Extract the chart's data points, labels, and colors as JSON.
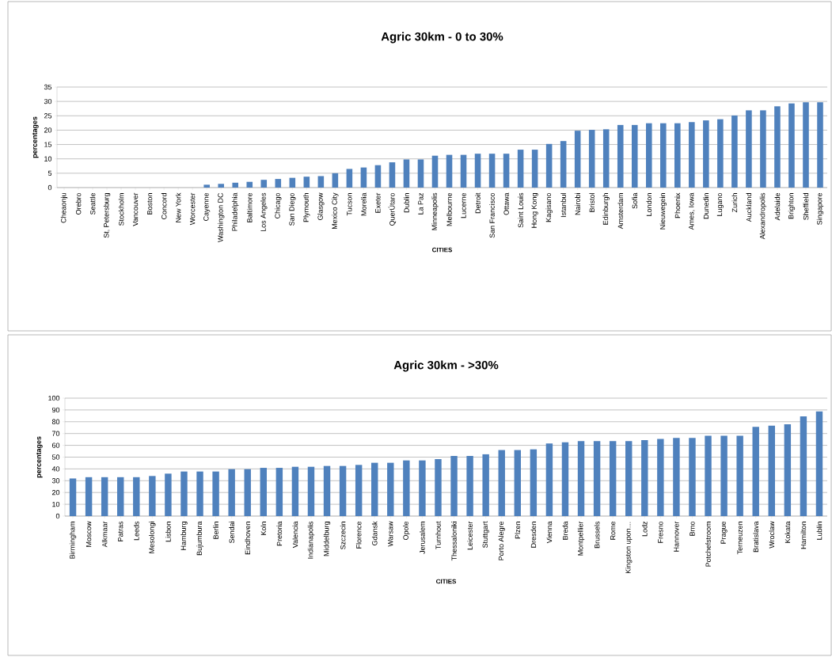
{
  "chart_data": [
    {
      "type": "bar",
      "title": "Agric 30km - 0 to 30%",
      "xlabel": "CITIES",
      "ylabel": "percentages",
      "color": "#4f81bd",
      "grid": "y",
      "ylim": [
        0,
        35
      ],
      "yticks": [
        0,
        5,
        10,
        15,
        20,
        25,
        30,
        35
      ],
      "categories": [
        "Cheaonju",
        "Orebro",
        "Seattle",
        "St, Petersburg",
        "Stockholm",
        "Vancouver",
        "Boston",
        "Concord",
        "New York",
        "Worcester",
        "Cayenne",
        "Washington DC",
        "Philadelphia",
        "Baltimore",
        "Los Angeles",
        "Chicago",
        "San Diego",
        "Plymouth",
        "Glasgow",
        "Mexico City",
        "Tucson",
        "Morelia",
        "Exeter",
        "QuerÚtaro",
        "Dublin",
        "La Paz",
        "Minneapolis",
        "Melbourne",
        "Lucerne",
        "Detroit",
        "San Francisco",
        "Ottawa",
        "Saint Louis",
        "Hong Kong",
        "Kagisano",
        "Istanbul",
        "Nairobi",
        "Bristol",
        "Edinburgh",
        "Amsterdam",
        "Sofia",
        "London",
        "Nieuwegein",
        "Phoenix",
        "Ames, Iowa",
        "Dunedin",
        "Lugano",
        "Zurich",
        "Auckland",
        "Alexandropolis",
        "Adelaide",
        "Brighton",
        "Sheffield",
        "Singapore"
      ],
      "values": [
        0,
        0,
        0,
        0,
        0,
        0,
        0,
        0,
        0,
        0,
        1.0,
        1.3,
        1.7,
        2.0,
        2.7,
        3.0,
        3.4,
        3.8,
        4.0,
        5.0,
        6.5,
        7.0,
        7.8,
        8.8,
        9.8,
        9.8,
        11.1,
        11.4,
        11.4,
        11.8,
        11.8,
        11.8,
        13.2,
        13.2,
        15.2,
        16.2,
        19.8,
        20.1,
        20.3,
        21.8,
        21.8,
        22.4,
        22.4,
        22.4,
        22.8,
        23.4,
        23.8,
        25.1,
        26.9,
        26.9,
        28.3,
        29.3,
        29.7,
        29.7
      ]
    },
    {
      "type": "bar",
      "title": "Agric 30km - >30%",
      "xlabel": "CITIES",
      "ylabel": "percentages",
      "color": "#4f81bd",
      "grid": "y",
      "ylim": [
        0,
        100
      ],
      "yticks": [
        0,
        10,
        20,
        30,
        40,
        50,
        60,
        70,
        80,
        90,
        100
      ],
      "categories": [
        "Birmingham",
        "Moscow",
        "Alkmaar",
        "Patras",
        "Leeds",
        "Mesolongi",
        "Lisbon",
        "Hamburg",
        "Bujumbura",
        "Berlin",
        "Sendai",
        "Eindhoven",
        "Koln",
        "Pretoria",
        "Valencia",
        "Indianapolis",
        "Middelburg",
        "Szczecin",
        "Florence",
        "Gdansk",
        "Warsaw",
        "Opole",
        "Jerusalem",
        "Turnhout",
        "Thessaloniki",
        "Leicester",
        "Stuttgart",
        "Porto Alegre",
        "Plzen",
        "Dresden",
        "Vienna",
        "Breda",
        "Montpellier",
        "Brussels",
        "Rome",
        "Kingston upon…",
        "Lodz",
        "Fresno",
        "Hannover",
        "Brno",
        "Potchefstroom",
        "Prague",
        "Terneuzen",
        "Bratislava",
        "Wroclaw",
        "Kokata",
        "Hamilton",
        "Lublin"
      ],
      "values": [
        31.9,
        33,
        33,
        33,
        33,
        34,
        36,
        37.8,
        37.8,
        37.8,
        39.8,
        39.8,
        40.9,
        40.9,
        41.8,
        41.8,
        42.5,
        42.5,
        43.4,
        45.2,
        45.2,
        47.2,
        47.2,
        48.3,
        51,
        51,
        52.4,
        56,
        56,
        56.6,
        61.6,
        62.5,
        63.6,
        63.6,
        63.6,
        63.6,
        64.5,
        65.4,
        66.3,
        66.3,
        68.1,
        68.1,
        68.1,
        75.7,
        76.6,
        77.8,
        84.5,
        88.8
      ]
    }
  ]
}
